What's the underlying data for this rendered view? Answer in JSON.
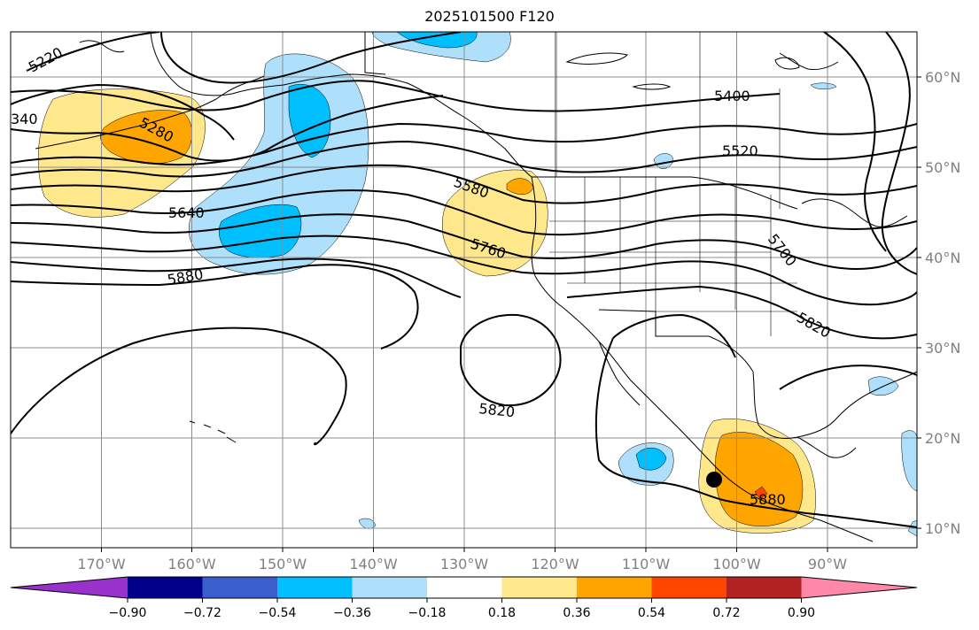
{
  "title": "2025101500 F120",
  "colors": {
    "contour": "#000000",
    "grid": "#8c8c8c",
    "positive": [
      "#ffe88c",
      "#ffa500",
      "#ff4500",
      "#b22222",
      "#ff88a8"
    ],
    "negative": [
      "#aee0fb",
      "#00bfff",
      "#3a5fcd",
      "#00008b",
      "#9932cc"
    ]
  },
  "longitude_labels": [
    "170°W",
    "160°W",
    "150°W",
    "140°W",
    "130°W",
    "120°W",
    "110°W",
    "100°W",
    "90°W"
  ],
  "latitude_labels": [
    "10°N",
    "20°N",
    "30°N",
    "40°N",
    "50°N",
    "60°N"
  ],
  "contour_labels": [
    "5220",
    "340",
    "5280",
    "5400",
    "5520",
    "5580",
    "5640",
    "5700",
    "5760",
    "5820",
    "5820",
    "5880",
    "5880"
  ],
  "colorbar": {
    "ticks": [
      "−0.90",
      "−0.72",
      "−0.54",
      "−0.36",
      "−0.18",
      "0.18",
      "0.36",
      "0.54",
      "0.72",
      "0.90"
    ],
    "colors": [
      "#9932cc",
      "#00008b",
      "#3a5fcd",
      "#00bfff",
      "#aee0fb",
      "#ffffff",
      "#ffe88c",
      "#ffa500",
      "#ff4500",
      "#b22222",
      "#ff88a8"
    ]
  },
  "marker": {
    "name": "storm-location",
    "color": "#000000"
  }
}
